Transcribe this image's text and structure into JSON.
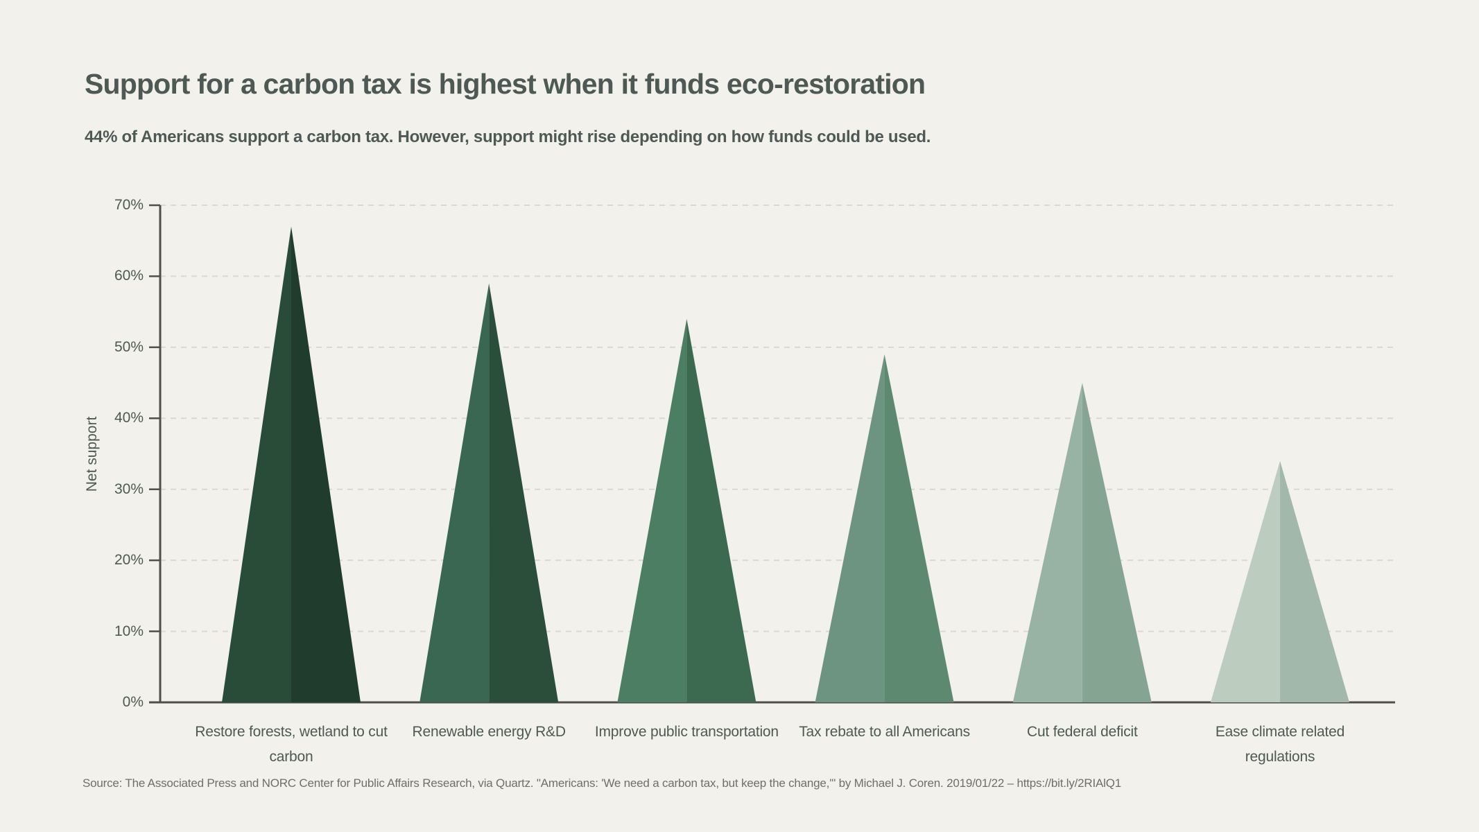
{
  "chart_data": {
    "type": "bar",
    "variant": "triangle-tree-bars",
    "title": "Support for a carbon tax is highest when it funds eco-restoration",
    "subtitle": "44% of Americans support a carbon tax. However, support might rise depending on how funds could be used.",
    "xlabel": "",
    "ylabel": "Net support",
    "ylim": [
      0,
      70
    ],
    "ytick_step": 10,
    "ytick_labels": [
      "0%",
      "10%",
      "20%",
      "30%",
      "40%",
      "50%",
      "60%",
      "70%"
    ],
    "grid": "horizontal-dashed",
    "legend": false,
    "categories": [
      "Restore forests, wetland to cut carbon",
      "Renewable energy R&D",
      "Improve public transportation",
      "Tax rebate to all Americans",
      "Cut federal deficit",
      "Ease climate related regulations"
    ],
    "values": [
      67,
      59,
      54,
      49,
      45,
      34
    ],
    "unit": "%",
    "bar_colors": [
      {
        "left": "#294C39",
        "right": "#1F3C2C"
      },
      {
        "left": "#396751",
        "right": "#2A4E3A"
      },
      {
        "left": "#4C7E63",
        "right": "#3B6A51"
      },
      {
        "left": "#6C9480",
        "right": "#5C8970"
      },
      {
        "left": "#98B3A3",
        "right": "#85A492"
      },
      {
        "left": "#BCCDC0",
        "right": "#A2B8AA"
      }
    ]
  },
  "source_note": "Source: The Associated Press and NORC Center for Public Affairs Research, via Quartz. \"Americans: 'We need a carbon tax, but keep the change,'\" by Michael J. Coren. 2019/01/22 – https://bit.ly/2RIAlQ1",
  "colors": {
    "background": "#F2F1EC",
    "text": "#4D5954",
    "axis": "#4F4F4A",
    "gridline": "#DAD8D1",
    "source_text": "#6F6F68"
  }
}
